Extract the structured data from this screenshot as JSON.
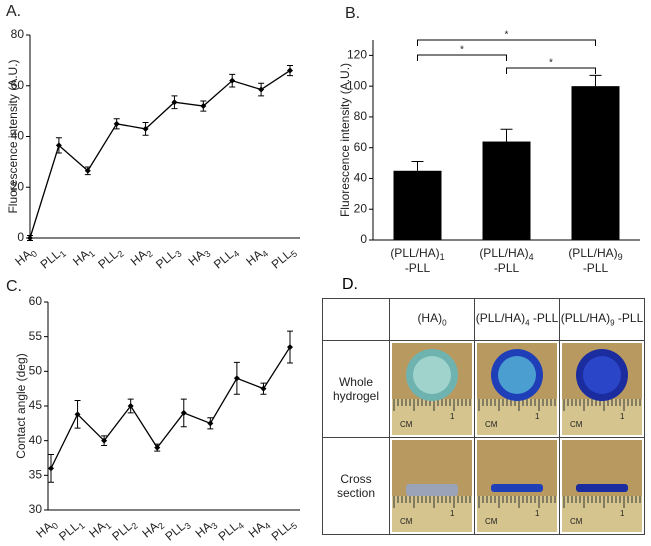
{
  "chart_data": [
    {
      "type": "line",
      "panel": "A.",
      "ylabel": "Fluorescence intensity (A.U.)",
      "categories": [
        "HA0",
        "PLL1",
        "HA1",
        "PLL2",
        "HA2",
        "PLL3",
        "HA3",
        "PLL4",
        "HA4",
        "PLL5"
      ],
      "values": [
        0,
        36.5,
        26.5,
        45,
        43,
        53.5,
        52,
        62,
        58.5,
        66
      ],
      "errors": [
        1,
        3,
        1.5,
        2,
        2.5,
        2.5,
        2,
        2.5,
        2.5,
        2
      ],
      "color": "#000000",
      "ylim": [
        0,
        80
      ],
      "yticks": [
        0,
        20,
        40,
        60,
        80
      ]
    },
    {
      "type": "bar",
      "panel": "B.",
      "ylabel": "Fluorescence intensity (A.U.)",
      "categories": [
        "(PLL/HA)1 -PLL",
        "(PLL/HA)4 -PLL",
        "(PLL/HA)9 -PLL"
      ],
      "values": [
        45,
        64,
        100
      ],
      "errors": [
        6,
        8,
        7
      ],
      "color": "#000000",
      "ylim": [
        0,
        130
      ],
      "yticks": [
        0,
        20,
        40,
        60,
        80,
        100,
        120
      ],
      "annotations": [
        "*",
        "*",
        "*"
      ]
    },
    {
      "type": "line",
      "panel": "C.",
      "ylabel": "Contact angle (deg)",
      "categories": [
        "HA0",
        "PLL1",
        "HA1",
        "PLL2",
        "HA2",
        "PLL3",
        "HA3",
        "PLL4",
        "HA4",
        "PLL5"
      ],
      "values": [
        36,
        43.8,
        40,
        45,
        39,
        44,
        42.5,
        49,
        47.5,
        53.5
      ],
      "errors": [
        2,
        2,
        0.7,
        1,
        0.5,
        2,
        0.8,
        2.3,
        0.8,
        2.3
      ],
      "color": "#000000",
      "ylim": [
        30,
        60
      ],
      "yticks": [
        30,
        35,
        40,
        45,
        50,
        55,
        60
      ]
    }
  ],
  "panel_d": {
    "panel": "D.",
    "columns": [
      "(HA)0",
      "(PLL/HA)4 -PLL",
      "(PLL/HA)9 -PLL"
    ],
    "rows": [
      "Whole hydrogel",
      "Cross section"
    ],
    "ruler_unit": "CM",
    "ruler_mark": "1"
  }
}
